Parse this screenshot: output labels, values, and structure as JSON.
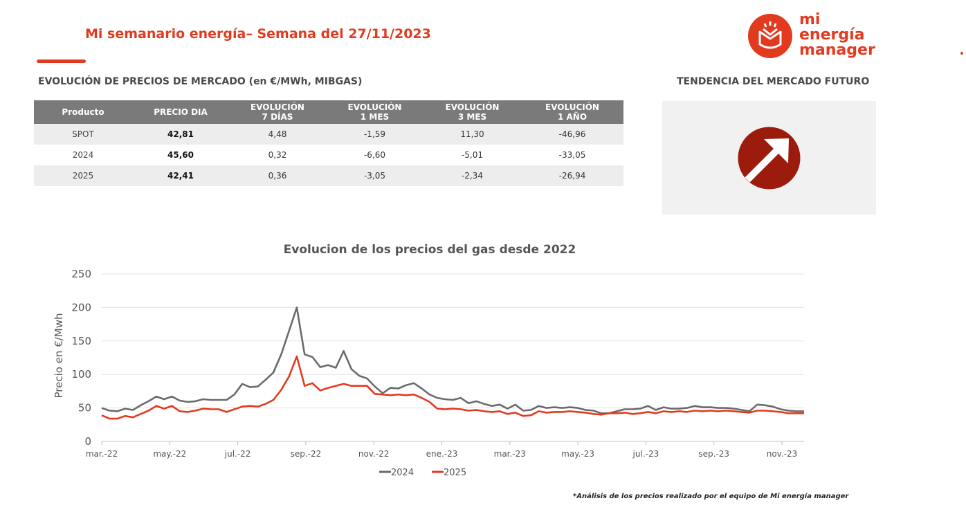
{
  "header": {
    "title": "Mi semanario energía– Semana del 27/11/2023",
    "logo_lines": [
      "mi",
      "energía",
      "manager"
    ]
  },
  "colors": {
    "brand": "#e23a1f",
    "table_header": "#7a7a7a",
    "row_alt": "#ededed",
    "arrow_bg": "#9b1c0c"
  },
  "market_table": {
    "title": "EVOLUCIÓN DE PRECIOS DE MERCADO (en €/MWh, MIBGAS)",
    "headers": [
      "Producto",
      "PRECIO DIA",
      "EVOLUCIÓN\n7 DÍAS",
      "EVOLUCIÓN\n1 MES",
      "EVOLUCIÓN\n3 MES",
      "EVOLUCIÓN\n1 AÑO"
    ],
    "rows": [
      [
        "SPOT",
        "42,81",
        "4,48",
        "-1,59",
        "11,30",
        "-46,96"
      ],
      [
        "2024",
        "45,60",
        "0,32",
        "-6,60",
        "-5,01",
        "-33,05"
      ],
      [
        "2025",
        "42,41",
        "0,36",
        "-3,05",
        "-2,34",
        "-26,94"
      ]
    ]
  },
  "trend": {
    "title": "TENDENCIA DEL MERCADO FUTURO",
    "icon": "arrow-up-right-icon",
    "direction": "up"
  },
  "chart_data": {
    "type": "line",
    "title": "Evolucion de los precios del gas desde 2022",
    "ylabel": "Precio en €/Mwh",
    "xlabel": "",
    "ylim": [
      0,
      250
    ],
    "yticks": [
      0,
      50,
      100,
      150,
      200,
      250
    ],
    "xticks": [
      "mar.-22",
      "may.-22",
      "jul.-22",
      "sep.-22",
      "nov.-22",
      "ene.-23",
      "mar.-23",
      "may.-23",
      "jul.-23",
      "sep.-23",
      "nov.-23"
    ],
    "grid": true,
    "legend": "bottom-center",
    "series": [
      {
        "name": "2024",
        "color": "#6b6b6b",
        "values": [
          50,
          46,
          45,
          49,
          47,
          54,
          60,
          67,
          63,
          67,
          61,
          59,
          60,
          63,
          62,
          62,
          62,
          70,
          86,
          81,
          82,
          92,
          103,
          130,
          165,
          200,
          130,
          126,
          111,
          114,
          110,
          135,
          108,
          98,
          94,
          82,
          72,
          80,
          79,
          84,
          87,
          79,
          70,
          65,
          63,
          62,
          65,
          57,
          60,
          56,
          53,
          55,
          49,
          55,
          46,
          47,
          53,
          50,
          51,
          50,
          51,
          50,
          47,
          46,
          42,
          42,
          45,
          48,
          48,
          49,
          53,
          47,
          51,
          49,
          49,
          50,
          53,
          51,
          51,
          50,
          50,
          49,
          47,
          45,
          55,
          54,
          52,
          48,
          46,
          45,
          45
        ],
        "x_start": 0
      },
      {
        "name": "2025",
        "color": "#e23a1f",
        "values": [
          39,
          34,
          34,
          38,
          36,
          41,
          46,
          53,
          49,
          53,
          45,
          44,
          46,
          49,
          48,
          48,
          44,
          48,
          52,
          53,
          52,
          56,
          62,
          77,
          97,
          127,
          83,
          87,
          76,
          80,
          83,
          86,
          83,
          83,
          83,
          71,
          70,
          69,
          70,
          69,
          70,
          65,
          59,
          49,
          48,
          49,
          48,
          46,
          47,
          45,
          44,
          45,
          41,
          43,
          38,
          39,
          45,
          43,
          44,
          44,
          45,
          44,
          43,
          41,
          40,
          42,
          42,
          43,
          41,
          42,
          44,
          42,
          45,
          44,
          45,
          44,
          46,
          45,
          46,
          45,
          46,
          45,
          44,
          43,
          46,
          46,
          45,
          44,
          42,
          42,
          42
        ],
        "x_start": 0
      }
    ]
  },
  "footnote": "*Análisis de los precios realizado por el equipo de Mi energía manager"
}
